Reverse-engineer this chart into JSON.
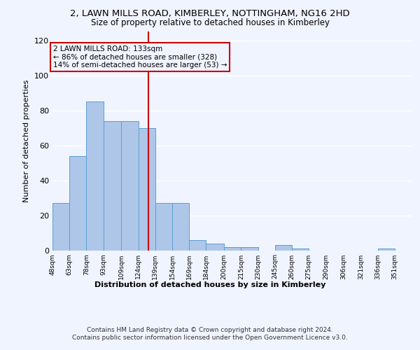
{
  "title1": "2, LAWN MILLS ROAD, KIMBERLEY, NOTTINGHAM, NG16 2HD",
  "title2": "Size of property relative to detached houses in Kimberley",
  "xlabel": "Distribution of detached houses by size in Kimberley",
  "ylabel": "Number of detached properties",
  "footer": "Contains HM Land Registry data © Crown copyright and database right 2024.\nContains public sector information licensed under the Open Government Licence v3.0.",
  "annotation_line1": "2 LAWN MILLS ROAD: 133sqm",
  "annotation_line2": "← 86% of detached houses are smaller (328)",
  "annotation_line3": "14% of semi-detached houses are larger (53) →",
  "property_size": 133,
  "bar_labels": [
    "48sqm",
    "63sqm",
    "78sqm",
    "93sqm",
    "109sqm",
    "124sqm",
    "139sqm",
    "154sqm",
    "169sqm",
    "184sqm",
    "200sqm",
    "215sqm",
    "230sqm",
    "245sqm",
    "260sqm",
    "275sqm",
    "290sqm",
    "306sqm",
    "321sqm",
    "336sqm",
    "351sqm"
  ],
  "bar_left_edges": [
    48,
    63,
    78,
    93,
    109,
    124,
    139,
    154,
    169,
    184,
    200,
    215,
    230,
    245,
    260,
    275,
    290,
    306,
    321,
    336,
    351
  ],
  "bar_widths": [
    15,
    15,
    15,
    16,
    15,
    15,
    15,
    15,
    15,
    16,
    15,
    15,
    15,
    15,
    15,
    15,
    16,
    15,
    15,
    15,
    15
  ],
  "bar_heights": [
    27,
    54,
    85,
    74,
    74,
    70,
    27,
    27,
    6,
    4,
    2,
    2,
    0,
    3,
    1,
    0,
    0,
    0,
    0,
    1,
    0
  ],
  "bar_color": "#aec6e8",
  "bar_edge_color": "#5a9fd4",
  "vline_x": 133,
  "vline_color": "#cc0000",
  "annotation_box_color": "#cc0000",
  "bg_color": "#f0f4ff",
  "ylim": [
    0,
    125
  ],
  "yticks": [
    0,
    20,
    40,
    60,
    80,
    100,
    120
  ],
  "grid_color": "#ffffff"
}
